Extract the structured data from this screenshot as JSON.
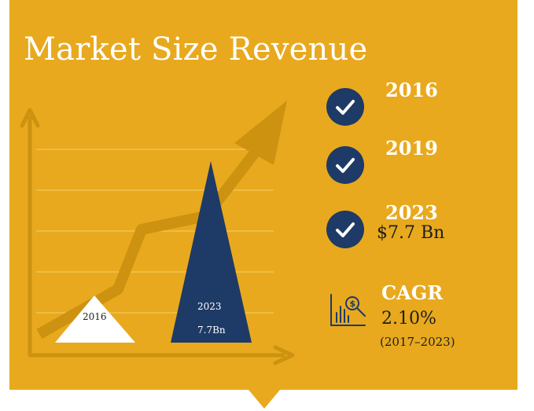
{
  "title": "Market Size Revenue",
  "colors": {
    "background": "#e8a91e",
    "accent_dark": "#1e3a66",
    "arrow": "#cc9210",
    "gridline": "#f3c75a",
    "text_light": "#ffffff",
    "text_dark": "#1e1e1e"
  },
  "chart": {
    "triangles": [
      {
        "year": "2016",
        "value": ""
      },
      {
        "year": "2023",
        "value": "7.7Bn"
      }
    ]
  },
  "milestones": [
    {
      "year": "2016",
      "value": "",
      "icon": "check-circle-icon"
    },
    {
      "year": "2019",
      "value": "",
      "icon": "check-circle-icon"
    },
    {
      "year": "2023",
      "value": "$7.7 Bn",
      "icon": "check-circle-icon"
    }
  ],
  "cagr": {
    "label": "CAGR",
    "value": "2.10%",
    "period": "(2017–2023)",
    "icon": "growth-chart-dollar-icon"
  }
}
